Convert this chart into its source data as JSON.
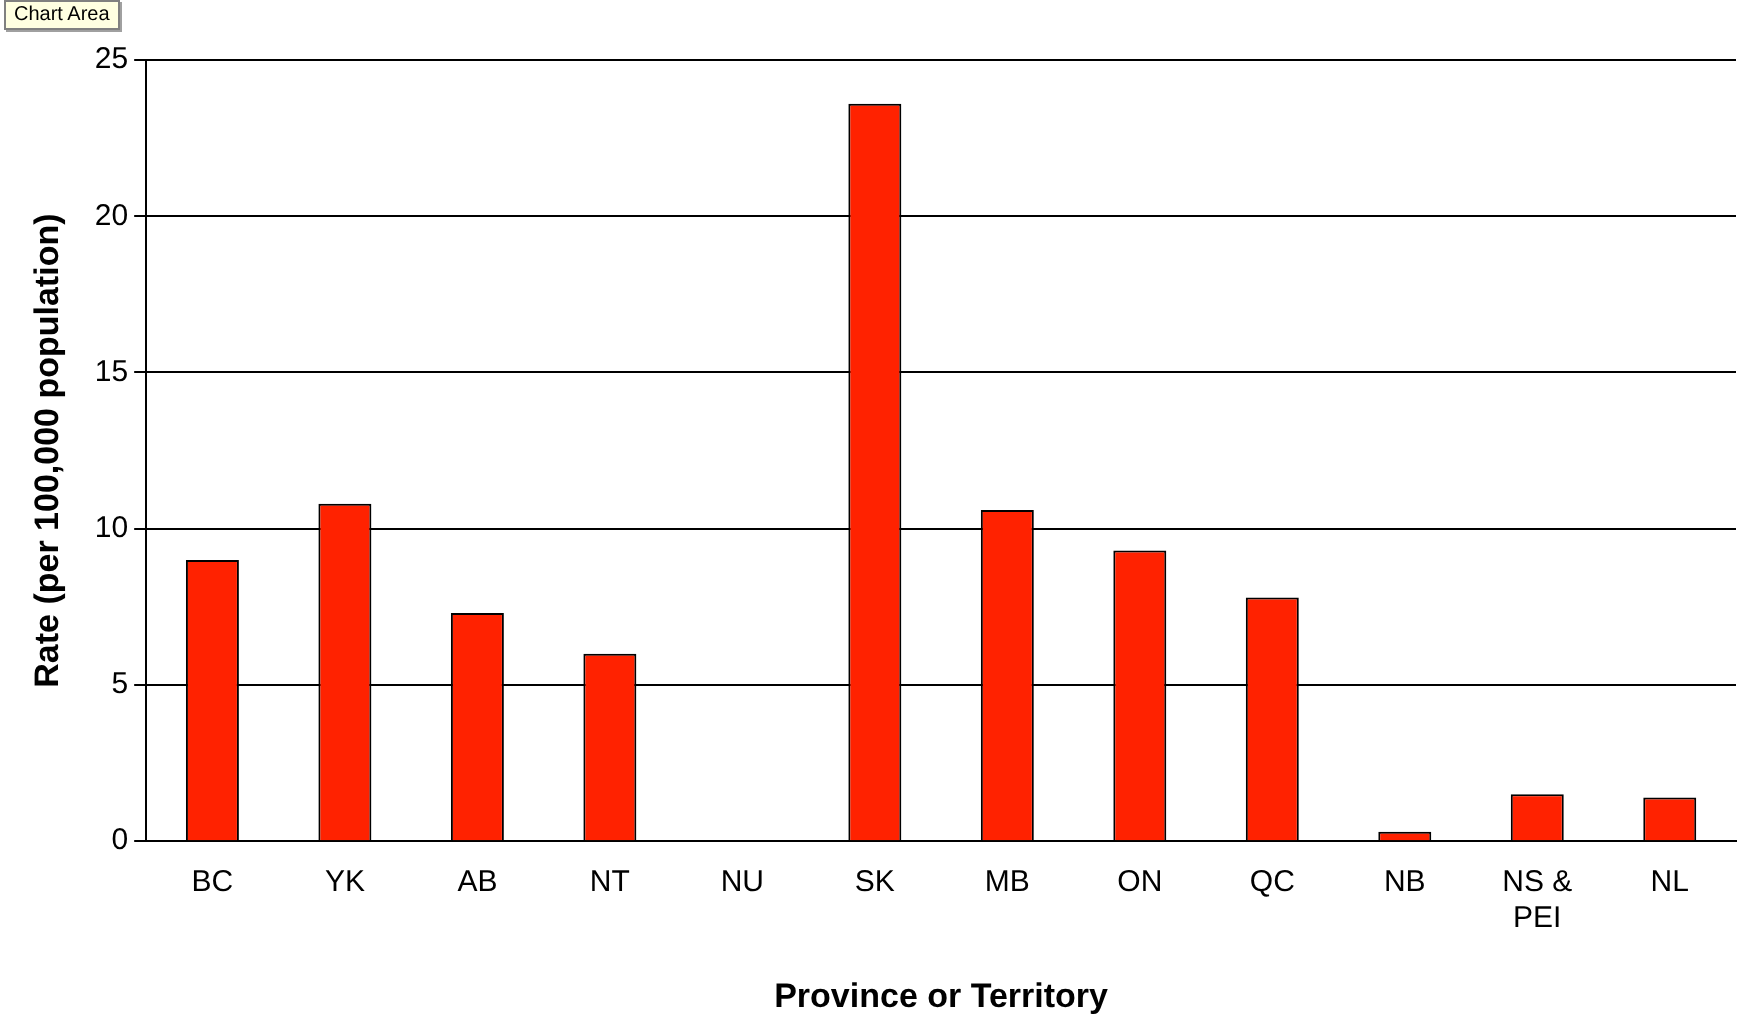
{
  "chart_data": {
    "type": "bar",
    "xlabel": "Province or Territory",
    "ylabel": "Rate (per 100,000 population)",
    "categories": [
      "BC",
      "YK",
      "AB",
      "NT",
      "NU",
      "SK",
      "MB",
      "ON",
      "QC",
      "NB",
      "NS & PEI",
      "NL"
    ],
    "values": [
      9.0,
      10.8,
      7.3,
      6.0,
      0,
      23.6,
      10.6,
      9.3,
      7.8,
      0.3,
      1.5,
      1.4
    ],
    "color": "#ff2200",
    "ylim": [
      0,
      25
    ],
    "yticks": [
      0,
      5,
      10,
      15,
      20,
      25
    ],
    "grid": "y",
    "legend": false,
    "annotations": [
      "Chart Area"
    ]
  }
}
